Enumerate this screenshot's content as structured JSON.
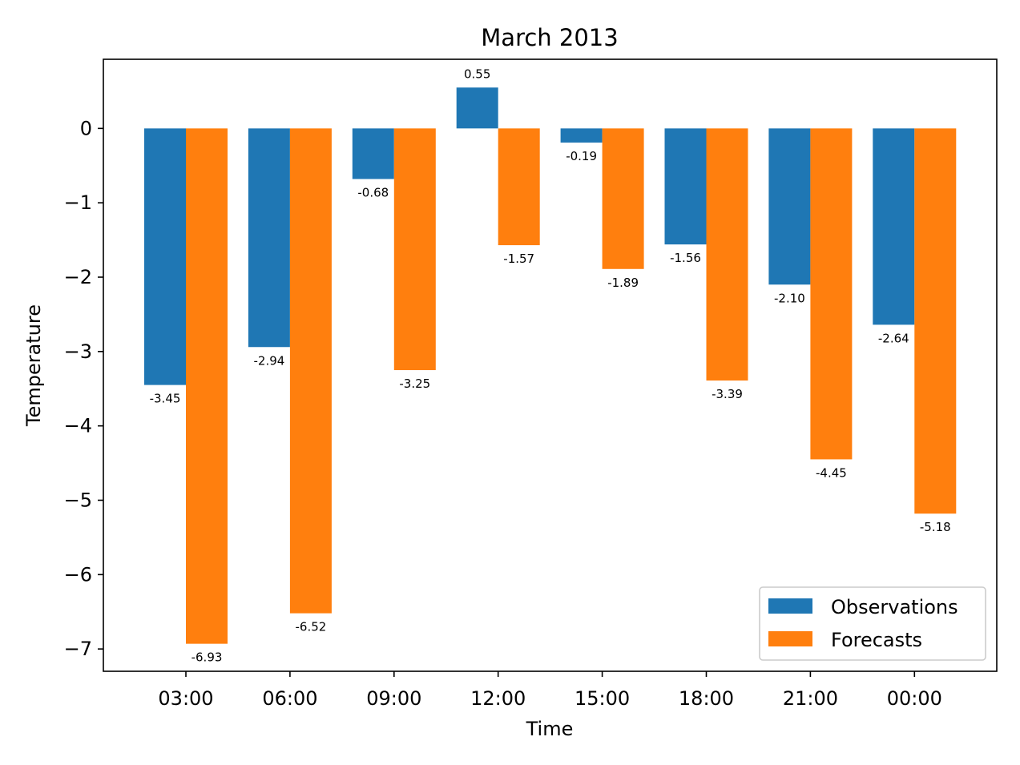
{
  "chart_data": {
    "type": "bar",
    "title": "March 2013",
    "xlabel": "Time",
    "ylabel": "Temperature",
    "categories": [
      "03:00",
      "06:00",
      "09:00",
      "12:00",
      "15:00",
      "18:00",
      "21:00",
      "00:00"
    ],
    "series": [
      {
        "name": "Observations",
        "color": "#1f77b4",
        "values": [
          -3.45,
          -2.94,
          -0.68,
          0.55,
          -0.19,
          -1.56,
          -2.1,
          -2.64
        ],
        "labels": [
          "-3.45",
          "-2.94",
          "-0.68",
          "0.55",
          "-0.19",
          "-1.56",
          "-2.10",
          "-2.64"
        ]
      },
      {
        "name": "Forecasts",
        "color": "#ff7f0e",
        "values": [
          -6.93,
          -6.52,
          -3.25,
          -1.57,
          -1.89,
          -3.39,
          -4.45,
          -5.18
        ],
        "labels": [
          "-6.93",
          "-6.52",
          "-3.25",
          "-1.57",
          "-1.89",
          "-3.39",
          "-4.45",
          "-5.18"
        ]
      }
    ],
    "yticks": [
      0,
      -1,
      -2,
      -3,
      -4,
      -5,
      -6,
      -7
    ],
    "ytick_labels": [
      "0",
      "−1",
      "−2",
      "−3",
      "−4",
      "−5",
      "−6",
      "−7"
    ],
    "ylim": [
      -7.3,
      0.93
    ],
    "grid": false,
    "legend_position": "lower-right"
  }
}
